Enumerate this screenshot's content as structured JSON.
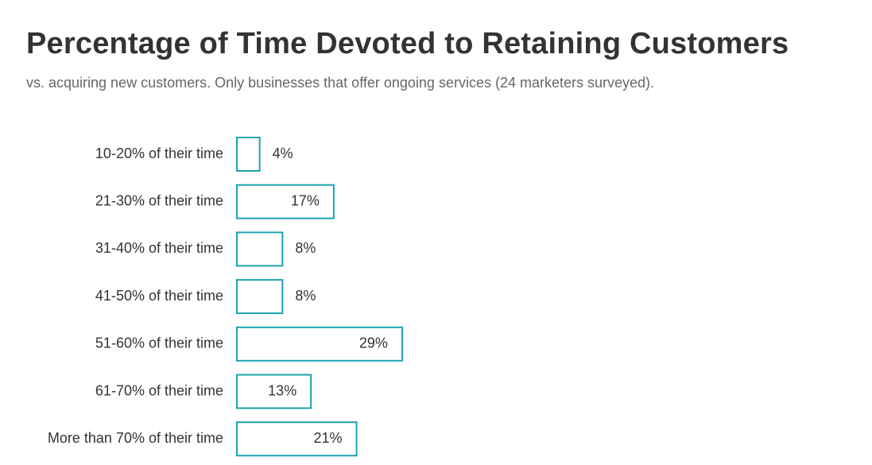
{
  "colors": {
    "bar_stroke": "#1ba3b0",
    "bar_fill": "#ffffff",
    "text": "#333333",
    "subtitle": "#666666"
  },
  "chart_data": {
    "type": "bar",
    "orientation": "horizontal",
    "title": "Percentage of Time Devoted to Retaining Customers",
    "subtitle": "vs. acquiring new customers. Only businesses that offer ongoing services (24 marketers surveyed).",
    "categories": [
      "10-20% of their time",
      "21-30% of their time",
      "31-40% of their time",
      "41-50% of their time",
      "51-60% of their time",
      "61-70% of their time",
      "More than 70% of their time"
    ],
    "values": [
      4,
      17,
      8,
      8,
      29,
      13,
      21
    ],
    "value_labels": [
      "4%",
      "17%",
      "8%",
      "8%",
      "29%",
      "13%",
      "21%"
    ],
    "unit": "%",
    "xlim": [
      0,
      100
    ],
    "grid": false,
    "legend": "none"
  }
}
